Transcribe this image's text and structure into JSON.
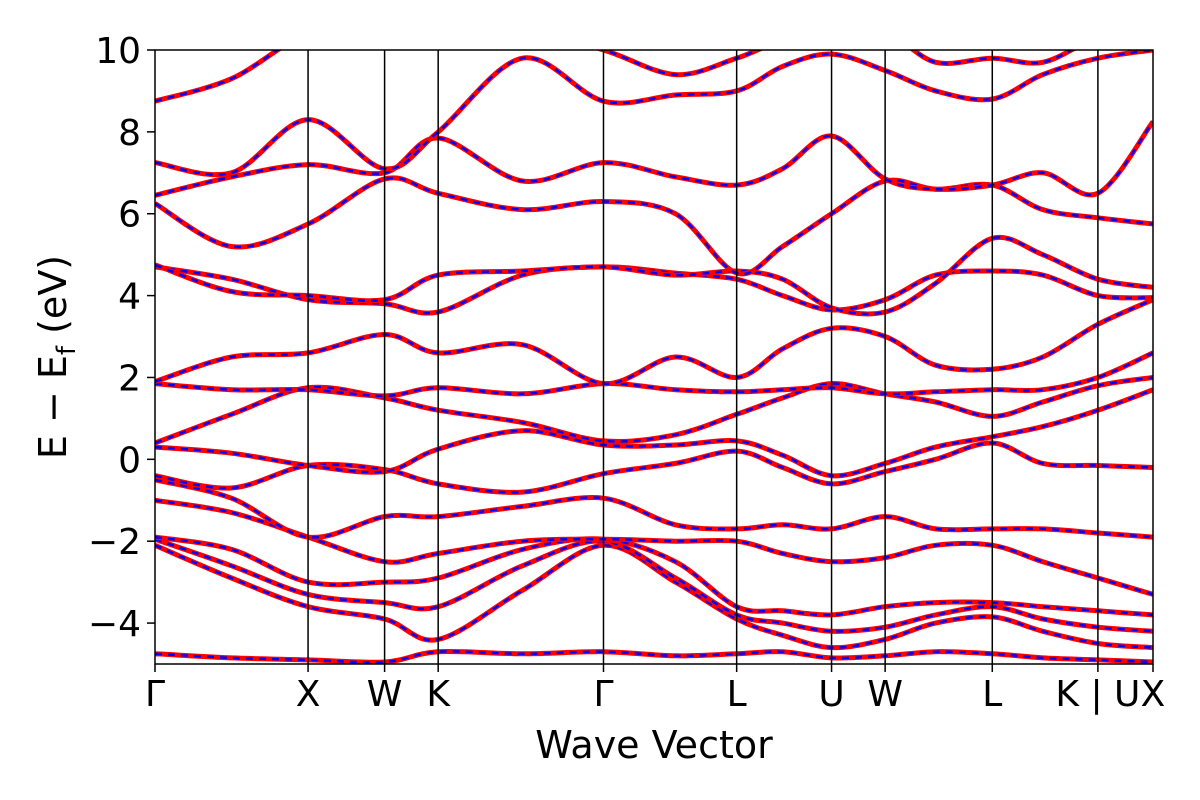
{
  "chart_data": {
    "type": "line",
    "title": "",
    "xlabel": "Wave Vector",
    "ylabel": "E − E_f (eV)",
    "ylabel_parts": {
      "main": "E − E",
      "sub": "f",
      "unit": " (eV)"
    },
    "ylim": [
      -5,
      10
    ],
    "yticks": [
      {
        "value": -4,
        "label": "−4"
      },
      {
        "value": -2,
        "label": "−2"
      },
      {
        "value": 0,
        "label": "0"
      },
      {
        "value": 2,
        "label": "2"
      },
      {
        "value": 4,
        "label": "4"
      },
      {
        "value": 6,
        "label": "6"
      },
      {
        "value": 8,
        "label": "8"
      },
      {
        "value": 10,
        "label": "10"
      }
    ],
    "xlim": [
      0,
      6.52
    ],
    "high_symmetry_points": [
      {
        "label": "Γ",
        "x": 0.0
      },
      {
        "label": "X",
        "x": 1.0
      },
      {
        "label": "W",
        "x": 1.5
      },
      {
        "label": "K",
        "x": 1.85
      },
      {
        "label": "Γ",
        "x": 2.93
      },
      {
        "label": "L",
        "x": 3.8
      },
      {
        "label": "U",
        "x": 4.42
      },
      {
        "label": "W",
        "x": 4.77
      },
      {
        "label": "L",
        "x": 5.47
      },
      {
        "label": "K | U",
        "x": 6.16
      },
      {
        "label": "X",
        "x": 6.52
      }
    ],
    "series": [
      {
        "color": "#ff0000",
        "style": "solid"
      },
      {
        "color": "#0000ff",
        "style": "dashed"
      }
    ],
    "bands": [
      {
        "x": [
          0,
          0.5,
          1.0,
          1.5,
          1.85,
          2.4,
          2.93,
          3.4,
          3.8,
          4.1,
          4.42,
          4.77,
          5.1,
          5.47,
          5.8,
          6.16,
          6.52
        ],
        "y": [
          -4.75,
          -4.85,
          -4.9,
          -4.95,
          -4.7,
          -4.75,
          -4.7,
          -4.8,
          -4.75,
          -4.7,
          -4.85,
          -4.8,
          -4.7,
          -4.75,
          -4.85,
          -4.9,
          -4.95
        ]
      },
      {
        "x": [
          0,
          0.5,
          1.0,
          1.5,
          1.85,
          2.4,
          2.93,
          3.4,
          3.8,
          4.1,
          4.42,
          4.77,
          5.1,
          5.47,
          5.8,
          6.16,
          6.52
        ],
        "y": [
          -2.1,
          -2.9,
          -3.6,
          -3.9,
          -4.4,
          -3.2,
          -2.1,
          -3.0,
          -3.9,
          -4.3,
          -4.6,
          -4.4,
          -4.0,
          -3.85,
          -4.2,
          -4.5,
          -4.6
        ]
      },
      {
        "x": [
          0,
          0.5,
          1.0,
          1.5,
          1.85,
          2.4,
          2.93,
          3.4,
          3.8,
          4.1,
          4.42,
          4.77,
          5.1,
          5.47,
          5.8,
          6.16,
          6.52
        ],
        "y": [
          -1.95,
          -2.6,
          -3.3,
          -3.5,
          -3.6,
          -2.6,
          -2.0,
          -2.9,
          -3.8,
          -4.0,
          -4.2,
          -4.1,
          -3.8,
          -3.6,
          -3.9,
          -4.1,
          -4.2
        ]
      },
      {
        "x": [
          0,
          0.5,
          1.0,
          1.5,
          1.85,
          2.4,
          2.93,
          3.4,
          3.8,
          4.1,
          4.42,
          4.77,
          5.1,
          5.47,
          5.8,
          6.16,
          6.52
        ],
        "y": [
          -1.9,
          -2.2,
          -3.0,
          -3.0,
          -2.9,
          -2.2,
          -1.95,
          -2.5,
          -3.6,
          -3.7,
          -3.8,
          -3.6,
          -3.5,
          -3.5,
          -3.6,
          -3.7,
          -3.8
        ]
      },
      {
        "x": [
          0,
          0.5,
          1.0,
          1.5,
          1.85,
          2.4,
          2.93,
          3.4,
          3.8,
          4.1,
          4.42,
          4.77,
          5.1,
          5.47,
          5.8,
          6.16,
          6.52
        ],
        "y": [
          -1.0,
          -1.3,
          -1.9,
          -2.5,
          -2.3,
          -2.0,
          -1.95,
          -2.0,
          -2.0,
          -2.3,
          -2.5,
          -2.4,
          -2.1,
          -2.1,
          -2.5,
          -2.9,
          -3.3
        ]
      },
      {
        "x": [
          0,
          0.5,
          1.0,
          1.5,
          1.85,
          2.4,
          2.93,
          3.4,
          3.8,
          4.1,
          4.42,
          4.77,
          5.1,
          5.47,
          5.8,
          6.16,
          6.52
        ],
        "y": [
          -0.5,
          -0.95,
          -1.9,
          -1.4,
          -1.4,
          -1.15,
          -0.95,
          -1.6,
          -1.7,
          -1.6,
          -1.7,
          -1.4,
          -1.7,
          -1.7,
          -1.7,
          -1.8,
          -1.9
        ]
      },
      {
        "x": [
          0,
          0.5,
          1.0,
          1.5,
          1.85,
          2.4,
          2.93,
          3.4,
          3.8,
          4.1,
          4.42,
          4.77,
          5.1,
          5.47,
          5.8,
          6.16,
          6.52
        ],
        "y": [
          -0.4,
          -0.7,
          -0.15,
          -0.25,
          -0.6,
          -0.8,
          -0.35,
          -0.1,
          0.2,
          -0.2,
          -0.6,
          -0.3,
          0.0,
          0.4,
          -0.1,
          -0.15,
          -0.2
        ]
      },
      {
        "x": [
          0,
          0.5,
          1.0,
          1.5,
          1.85,
          2.4,
          2.93,
          3.4,
          3.8,
          4.1,
          4.42,
          4.77,
          5.1,
          5.47,
          5.8,
          6.16,
          6.52
        ],
        "y": [
          0.3,
          0.15,
          -0.15,
          -0.3,
          0.25,
          0.7,
          0.35,
          0.35,
          0.45,
          0.1,
          -0.4,
          -0.1,
          0.3,
          0.55,
          0.8,
          1.2,
          1.7
        ]
      },
      {
        "x": [
          0,
          0.5,
          1.0,
          1.5,
          1.85,
          2.4,
          2.93,
          3.4,
          3.8,
          4.1,
          4.42,
          4.77,
          5.1,
          5.47,
          5.8,
          6.16,
          6.52
        ],
        "y": [
          0.4,
          1.1,
          1.75,
          1.5,
          1.2,
          0.9,
          0.45,
          0.6,
          1.1,
          1.5,
          1.85,
          1.6,
          1.4,
          1.05,
          1.4,
          1.8,
          2.0
        ]
      },
      {
        "x": [
          0,
          0.5,
          1.0,
          1.5,
          1.85,
          2.4,
          2.93,
          3.4,
          3.8,
          4.1,
          4.42,
          4.77,
          5.1,
          5.47,
          5.8,
          6.16,
          6.52
        ],
        "y": [
          1.85,
          1.7,
          1.7,
          1.55,
          1.75,
          1.6,
          1.85,
          1.7,
          1.65,
          1.7,
          1.75,
          1.6,
          1.65,
          1.7,
          1.7,
          2.0,
          2.6
        ]
      },
      {
        "x": [
          0,
          0.5,
          1.0,
          1.5,
          1.85,
          2.4,
          2.93,
          3.4,
          3.8,
          4.1,
          4.42,
          4.77,
          5.1,
          5.47,
          5.8,
          6.16,
          6.52
        ],
        "y": [
          1.9,
          2.5,
          2.6,
          3.05,
          2.6,
          2.8,
          1.85,
          2.5,
          2.0,
          2.7,
          3.2,
          3.0,
          2.3,
          2.2,
          2.5,
          3.3,
          3.9
        ]
      },
      {
        "x": [
          0,
          0.5,
          1.0,
          1.5,
          1.85,
          2.4,
          2.93,
          3.4,
          3.8,
          4.1,
          4.42,
          4.77,
          5.1,
          5.47,
          5.8,
          6.16,
          6.52
        ],
        "y": [
          4.7,
          4.4,
          3.9,
          3.8,
          3.6,
          4.5,
          4.7,
          4.55,
          4.4,
          4.0,
          3.65,
          3.9,
          4.5,
          4.6,
          4.5,
          4.0,
          3.95
        ]
      },
      {
        "x": [
          0,
          0.5,
          1.0,
          1.5,
          1.85,
          2.4,
          2.93,
          3.4,
          3.8,
          4.1,
          4.42,
          4.77,
          5.1,
          5.47,
          5.8,
          6.16,
          6.52
        ],
        "y": [
          4.75,
          4.1,
          4.0,
          3.9,
          4.5,
          4.6,
          4.7,
          4.5,
          4.6,
          4.4,
          3.7,
          3.6,
          4.3,
          5.4,
          5.0,
          4.4,
          4.2
        ]
      },
      {
        "x": [
          0,
          0.5,
          1.0,
          1.5,
          1.85,
          2.4,
          2.93,
          3.4,
          3.8,
          4.1,
          4.42,
          4.77,
          5.1,
          5.47,
          5.8,
          6.16,
          6.52
        ],
        "y": [
          6.25,
          5.2,
          5.75,
          6.85,
          6.5,
          6.1,
          6.3,
          6.0,
          4.55,
          5.2,
          6.0,
          6.8,
          6.6,
          6.7,
          6.1,
          5.9,
          5.75
        ]
      },
      {
        "x": [
          0,
          0.5,
          1.0,
          1.5,
          1.85,
          2.4,
          2.93,
          3.4,
          3.8,
          4.1,
          4.42,
          4.77,
          5.1,
          5.47,
          5.8,
          6.16,
          6.52
        ],
        "y": [
          6.45,
          6.9,
          7.2,
          7.0,
          7.85,
          6.8,
          7.25,
          6.9,
          6.7,
          7.1,
          7.9,
          6.85,
          6.6,
          6.7,
          7.0,
          6.5,
          8.25
        ]
      },
      {
        "x": [
          0,
          0.5,
          1.0,
          1.5,
          1.85,
          2.4,
          2.93,
          3.4,
          3.8,
          4.1,
          4.42,
          4.77,
          5.1,
          5.47,
          5.8,
          6.16,
          6.52
        ],
        "y": [
          7.25,
          7.0,
          8.3,
          7.1,
          8.0,
          9.8,
          8.75,
          8.9,
          9.0,
          9.6,
          9.9,
          9.5,
          9.0,
          8.8,
          9.4,
          9.8,
          10.0
        ]
      },
      {
        "x": [
          0,
          0.5,
          1.0,
          1.5,
          1.85,
          2.4,
          2.93,
          3.4,
          3.8,
          4.1,
          4.42,
          4.77,
          5.1,
          5.47,
          5.8,
          6.16,
          6.52
        ],
        "y": [
          8.75,
          9.3,
          10.4,
          10.6,
          10.1,
          10.5,
          10.0,
          9.4,
          9.8,
          10.2,
          10.1,
          10.4,
          9.7,
          9.8,
          9.7,
          10.3,
          10.5
        ]
      }
    ]
  }
}
